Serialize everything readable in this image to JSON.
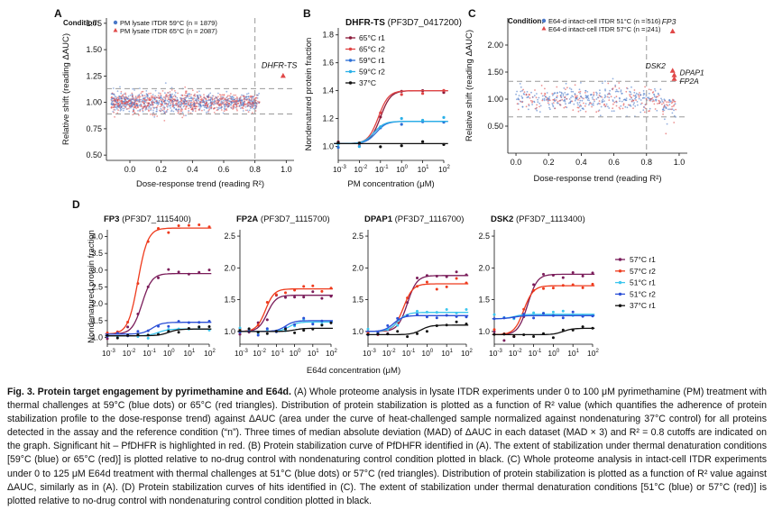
{
  "colors": {
    "blue_dots": "#4a78c8",
    "red_tri": "#e04848",
    "dhfr_red1": "#8b1a3a",
    "dhfr_red2": "#e04444",
    "dhfr_blue1": "#2c6fd6",
    "dhfr_blue2": "#2ab0e8",
    "black": "#111111",
    "d_57r1": "#7a1c5a",
    "d_57r2": "#ee3a1c",
    "d_51r1": "#3cc6ee",
    "d_51r2": "#2b4fd6",
    "d_37r1": "#111111",
    "cutoff": "#999999"
  },
  "panelA": {
    "letter": "A",
    "condition_label": "Condition:",
    "legend": [
      "PM lysate ITDR 59°C (n = 1879)",
      "PM lysate ITDR 65°C (n = 2087)"
    ],
    "hit_label": "DHFR-TS",
    "xlabel": "Dose-response trend (reading R²)",
    "ylabel": "Relative shift (reading ΔAUC)",
    "xticks": [
      "0.0",
      "0.2",
      "0.4",
      "0.6",
      "0.8",
      "1.0"
    ],
    "yticks": [
      "0.50",
      "0.75",
      "1.00",
      "1.25",
      "1.50",
      "1.75"
    ]
  },
  "panelB": {
    "letter": "B",
    "title_bold": "DHFR-TS",
    "title_rest": " (PF3D7_0417200)",
    "ylabel": "Nondenatured protein fraction",
    "xlabel": "PM concentration (μM)",
    "yticks": [
      "1.0",
      "1.2",
      "1.4",
      "1.6",
      "1.8"
    ],
    "legend": [
      "65°C r1",
      "65°C r2",
      "59°C r1",
      "59°C r2",
      "37°C"
    ]
  },
  "panelC": {
    "letter": "C",
    "condition_label": "Condition:",
    "legend": [
      "E64-d intact-cell ITDR 51°C (n = 516)",
      "E64-d intact-cell ITDR 57°C (n = 241)"
    ],
    "hit_labels": [
      "FP3",
      "DSK2",
      "DPAP1",
      "FP2A"
    ],
    "xlabel": "Dose-response trend (reading R²)",
    "ylabel": "Relative shift (reading ΔAUC)",
    "xticks": [
      "0.0",
      "0.2",
      "0.4",
      "0.6",
      "0.8",
      "1.0"
    ],
    "yticks": [
      "0.50",
      "1.00",
      "1.50",
      "2.00"
    ]
  },
  "panelD": {
    "letter": "D",
    "ylabel": "Nondenatured protein fraction",
    "xlabel": "E64d concentration (μM)",
    "subplots": [
      {
        "bold": "FP3",
        "rest": " (PF3D7_1115400)",
        "yticks": [
          "1.0",
          "1.5",
          "2.0",
          "2.5",
          "3.0",
          "3.5",
          "4.0"
        ]
      },
      {
        "bold": "FP2A",
        "rest": " (PF3D7_1115700)",
        "yticks": [
          "1.0",
          "1.5",
          "2.0",
          "2.5"
        ]
      },
      {
        "bold": "DPAP1",
        "rest": " (PF3D7_1116700)",
        "yticks": [
          "1.0",
          "1.5",
          "2.0",
          "2.5"
        ]
      },
      {
        "bold": "DSK2",
        "rest": " (PF3D7_1113400)",
        "yticks": [
          "1.0",
          "1.5",
          "2.0",
          "2.5"
        ]
      }
    ],
    "legend": [
      "57°C r1",
      "57°C r2",
      "51°C r1",
      "51°C r2",
      "37°C r1"
    ]
  },
  "chart_data": [
    {
      "type": "scatter",
      "panel": "A",
      "title": "",
      "xlabel": "Dose-response trend (reading R²)",
      "ylabel": "Relative shift (reading ΔAUC)",
      "xlim": [
        -0.15,
        1.05
      ],
      "ylim": [
        0.45,
        1.8
      ],
      "series": [
        {
          "name": "PM lysate ITDR 59°C",
          "summary": "dense cloud centered ~1.0, x 0–0.8"
        },
        {
          "name": "PM lysate ITDR 65°C",
          "summary": "dense cloud centered ~1.0, x 0–0.8"
        }
      ],
      "hit": {
        "name": "DHFR-TS",
        "x": 0.98,
        "y": 1.25
      },
      "cutoffs": {
        "y": [
          1.13,
          0.89
        ],
        "x": 0.8
      }
    },
    {
      "type": "line",
      "panel": "B",
      "title": "DHFR-TS (PF3D7_0417200)",
      "xlabel": "PM concentration (μM)",
      "ylabel": "Nondenatured protein fraction",
      "xscale": "log",
      "xlim": [
        0.001,
        100
      ],
      "ylim": [
        0.9,
        1.85
      ],
      "series": [
        {
          "name": "65°C r1",
          "bottom": 1.02,
          "top": 1.4
        },
        {
          "name": "65°C r2",
          "bottom": 1.02,
          "top": 1.4
        },
        {
          "name": "59°C r1",
          "bottom": 1.02,
          "top": 1.18
        },
        {
          "name": "59°C r2",
          "bottom": 1.02,
          "top": 1.18
        },
        {
          "name": "37°C",
          "bottom": 1.02,
          "top": 1.02
        }
      ]
    },
    {
      "type": "scatter",
      "panel": "C",
      "title": "",
      "xlabel": "Dose-response trend (reading R²)",
      "ylabel": "Relative shift (reading ΔAUC)",
      "xlim": [
        -0.05,
        1.05
      ],
      "ylim": [
        0.0,
        2.5
      ],
      "series": [
        {
          "name": "E64-d intact-cell ITDR 51°C"
        },
        {
          "name": "E64-d intact-cell ITDR 57°C"
        }
      ],
      "hits": [
        {
          "name": "FP3",
          "x": 0.96,
          "y": 2.25
        },
        {
          "name": "DSK2",
          "x": 0.96,
          "y": 1.52
        },
        {
          "name": "DPAP1",
          "x": 0.97,
          "y": 1.44
        },
        {
          "name": "FP2A",
          "x": 0.97,
          "y": 1.37
        }
      ],
      "cutoffs": {
        "y": [
          1.33,
          0.67
        ],
        "x": 0.8
      }
    },
    {
      "type": "line",
      "panel": "D",
      "title": "FP3 (PF3D7_1115400)",
      "xscale": "log",
      "xlim": [
        0.001,
        100
      ],
      "ylim": [
        0.8,
        4.2
      ],
      "series": [
        {
          "name": "57°C r1",
          "bottom": 1.1,
          "top": 2.9
        },
        {
          "name": "57°C r2",
          "bottom": 1.1,
          "top": 4.25
        },
        {
          "name": "51°C r1",
          "bottom": 1.05,
          "top": 1.25
        },
        {
          "name": "51°C r2",
          "bottom": 1.1,
          "top": 1.45
        },
        {
          "name": "37°C r1",
          "bottom": 1.05,
          "top": 1.25
        }
      ]
    },
    {
      "type": "line",
      "panel": "D",
      "title": "FP2A (PF3D7_1115700)",
      "xscale": "log",
      "xlim": [
        0.001,
        100
      ],
      "ylim": [
        0.8,
        2.6
      ],
      "series": [
        {
          "name": "57°C r1",
          "bottom": 1.0,
          "top": 1.57
        },
        {
          "name": "57°C r2",
          "bottom": 1.0,
          "top": 1.67
        },
        {
          "name": "51°C r1",
          "bottom": 1.0,
          "top": 1.15
        },
        {
          "name": "51°C r2",
          "bottom": 1.0,
          "top": 1.17
        },
        {
          "name": "37°C r1",
          "bottom": 1.0,
          "top": 1.05
        }
      ]
    },
    {
      "type": "line",
      "panel": "D",
      "title": "DPAP1 (PF3D7_1116700)",
      "xscale": "log",
      "xlim": [
        0.001,
        100
      ],
      "ylim": [
        0.8,
        2.6
      ],
      "series": [
        {
          "name": "57°C r1",
          "bottom": 1.0,
          "top": 1.88
        },
        {
          "name": "57°C r2",
          "bottom": 1.0,
          "top": 1.75
        },
        {
          "name": "51°C r1",
          "bottom": 1.0,
          "top": 1.3
        },
        {
          "name": "51°C r2",
          "bottom": 1.0,
          "top": 1.25
        },
        {
          "name": "37°C r1",
          "bottom": 0.95,
          "top": 1.1
        }
      ]
    },
    {
      "type": "line",
      "panel": "D",
      "title": "DSK2 (PF3D7_1113400)",
      "xscale": "log",
      "xlim": [
        0.001,
        100
      ],
      "ylim": [
        0.8,
        2.6
      ],
      "series": [
        {
          "name": "57°C r1",
          "bottom": 0.95,
          "top": 1.9
        },
        {
          "name": "57°C r2",
          "bottom": 0.95,
          "top": 1.72
        },
        {
          "name": "51°C r1",
          "bottom": 1.2,
          "top": 1.27
        },
        {
          "name": "51°C r2",
          "bottom": 1.2,
          "top": 1.25
        },
        {
          "name": "37°C r1",
          "bottom": 0.95,
          "top": 1.05
        }
      ]
    }
  ],
  "caption": {
    "fig_label": "Fig. 3. Protein target engagement by pyrimethamine and E64d.",
    "text": " (A) Whole proteome analysis in lysate ITDR experiments under 0 to 100 μM pyrimethamine (PM) treatment with thermal challenges at 59°C (blue dots) or 65°C (red triangles). Distribution of protein stabilization is plotted as a function of R² value (which quantifies the adherence of protein stabilization profile to the dose-response trend) against ΔAUC (area under the curve of heat-challenged sample normalized against nondenaturing 37°C control) for all proteins detected in the assay and the reference condition (“n”). Three times of median absolute deviation (MAD) of ΔAUC in each dataset (MAD × 3) and R² = 0.8 cutoffs are indicated on the graph. Significant hit – PfDHFR is highlighted in red. (B) Protein stabilization curve of PfDHFR identified in (A). The extent of stabilization under thermal denaturation conditions [59°C (blue) or 65°C (red)] is plotted relative to no-drug control with nondenaturing control condition plotted in black. (C) Whole proteome analysis in intact-cell ITDR experiments under 0 to 125 μM E64d treatment with thermal challenges at 51°C (blue dots) or 57°C (red triangles). Distribution of protein stabilization is plotted as a function of R² value against ΔAUC, similarly as in (A). (D) Protein stabilization curves of hits identified in (C). The extent of stabilization under thermal denaturation conditions [51°C (blue) or 57°C (red)] is plotted relative to no-drug control with nondenaturing control condition plotted in black."
  }
}
